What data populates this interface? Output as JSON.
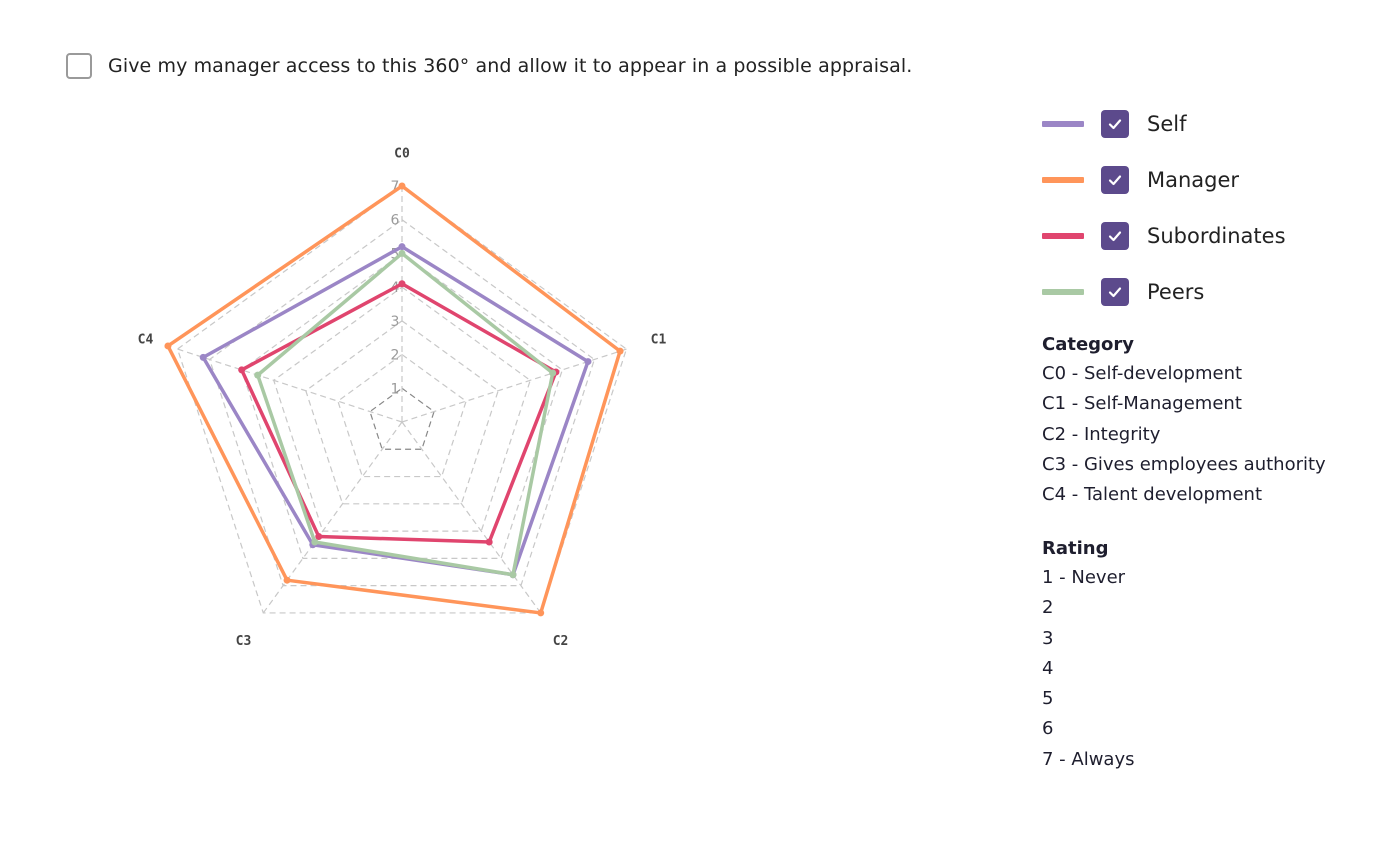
{
  "consent": {
    "checked": false,
    "label": "Give my manager access to this 360° and allow it to appear in a possible appraisal."
  },
  "legend": [
    {
      "label": "Self",
      "color": "#9b86c6",
      "checked": true
    },
    {
      "label": "Manager",
      "color": "#ff955a",
      "checked": true
    },
    {
      "label": "Subordinates",
      "color": "#e0456e",
      "checked": true
    },
    {
      "label": "Peers",
      "color": "#a9c9a4",
      "checked": true
    }
  ],
  "category": {
    "title": "Category",
    "items": [
      "C0 - Self-development",
      "C1 - Self-Management",
      "C2 - Integrity",
      "C3 - Gives employees authority",
      "C4 - Talent development"
    ]
  },
  "rating": {
    "title": "Rating",
    "items": [
      "1 - Never",
      "2",
      "3",
      "4",
      "5",
      "6",
      "7 - Always"
    ]
  },
  "chart_data": {
    "type": "radar",
    "axes": [
      "C0",
      "C1",
      "C2",
      "C3",
      "C4"
    ],
    "range": [
      0,
      7
    ],
    "ticks": [
      "1",
      "2",
      "3",
      "4",
      "5",
      "6",
      "7"
    ],
    "grid": true,
    "series": [
      {
        "name": "Self",
        "values": [
          5.2,
          5.8,
          5.6,
          4.5,
          6.2
        ]
      },
      {
        "name": "Manager",
        "values": [
          7.0,
          6.8,
          7.0,
          5.8,
          7.3
        ]
      },
      {
        "name": "Subordinates",
        "values": [
          4.1,
          4.8,
          4.4,
          4.2,
          5.0
        ]
      },
      {
        "name": "Peers",
        "values": [
          5.0,
          4.7,
          5.6,
          4.4,
          4.5
        ]
      }
    ]
  }
}
